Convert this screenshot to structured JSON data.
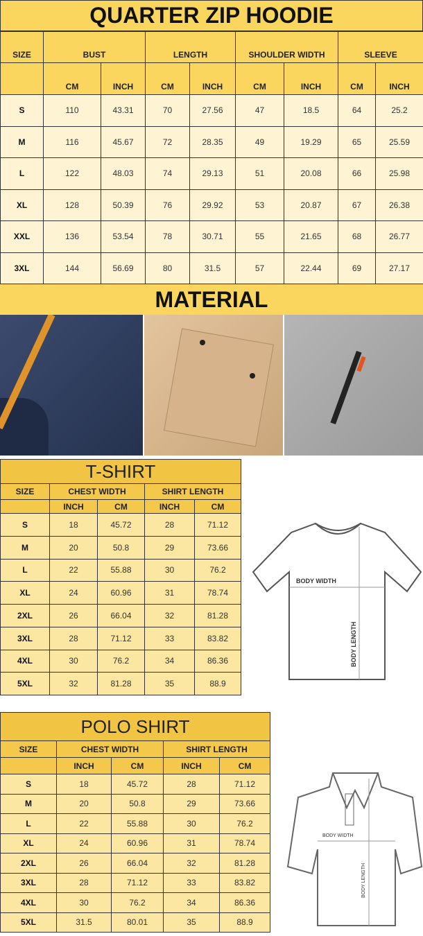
{
  "hoodie": {
    "title": "QUARTER ZIP HOODIE",
    "groups": [
      "SIZE",
      "BUST",
      "LENGTH",
      "SHOULDER WIDTH",
      "SLEEVE"
    ],
    "units": [
      "CM",
      "INCH",
      "CM",
      "INCH",
      "CM",
      "INCH",
      "CM",
      "INCH"
    ],
    "rows": [
      [
        "S",
        "110",
        "43.31",
        "70",
        "27.56",
        "47",
        "18.5",
        "64",
        "25.2"
      ],
      [
        "M",
        "116",
        "45.67",
        "72",
        "28.35",
        "49",
        "19.29",
        "65",
        "25.59"
      ],
      [
        "L",
        "122",
        "48.03",
        "74",
        "29.13",
        "51",
        "20.08",
        "66",
        "25.98"
      ],
      [
        "XL",
        "128",
        "50.39",
        "76",
        "29.92",
        "53",
        "20.87",
        "67",
        "26.38"
      ],
      [
        "XXL",
        "136",
        "53.54",
        "78",
        "30.71",
        "55",
        "21.65",
        "68",
        "26.77"
      ],
      [
        "3XL",
        "144",
        "56.69",
        "80",
        "31.5",
        "57",
        "22.44",
        "69",
        "27.17"
      ]
    ]
  },
  "material": {
    "title": "MATERIAL",
    "photos": [
      "navy-fabric-with-orange-strap",
      "beige-fabric-with-flap-pocket",
      "grey-fabric-with-zipper-pocket"
    ]
  },
  "tshirt": {
    "title": "T-SHIRT",
    "groups": [
      "SIZE",
      "CHEST WIDTH",
      "SHIRT LENGTH"
    ],
    "units": [
      "INCH",
      "CM",
      "INCH",
      "CM"
    ],
    "rows": [
      [
        "S",
        "18",
        "45.72",
        "28",
        "71.12"
      ],
      [
        "M",
        "20",
        "50.8",
        "29",
        "73.66"
      ],
      [
        "L",
        "22",
        "55.88",
        "30",
        "76.2"
      ],
      [
        "XL",
        "24",
        "60.96",
        "31",
        "78.74"
      ],
      [
        "2XL",
        "26",
        "66.04",
        "32",
        "81.28"
      ],
      [
        "3XL",
        "28",
        "71.12",
        "33",
        "83.82"
      ],
      [
        "4XL",
        "30",
        "76.2",
        "34",
        "86.36"
      ],
      [
        "5XL",
        "32",
        "81.28",
        "35",
        "88.9"
      ]
    ],
    "diagram": {
      "width_label": "BODY WIDTH",
      "length_label": "BODY LENGTH"
    }
  },
  "polo": {
    "title": "POLO SHIRT",
    "groups": [
      "SIZE",
      "CHEST WIDTH",
      "SHIRT LENGTH"
    ],
    "units": [
      "INCH",
      "CM",
      "INCH",
      "CM"
    ],
    "rows": [
      [
        "S",
        "18",
        "45.72",
        "28",
        "71.12"
      ],
      [
        "M",
        "20",
        "50.8",
        "29",
        "73.66"
      ],
      [
        "L",
        "22",
        "55.88",
        "30",
        "76.2"
      ],
      [
        "XL",
        "24",
        "60.96",
        "31",
        "78.74"
      ],
      [
        "2XL",
        "26",
        "66.04",
        "32",
        "81.28"
      ],
      [
        "3XL",
        "28",
        "71.12",
        "33",
        "83.82"
      ],
      [
        "4XL",
        "30",
        "76.2",
        "34",
        "86.36"
      ],
      [
        "5XL",
        "31.5",
        "80.01",
        "35",
        "88.9"
      ]
    ],
    "diagram": {
      "width_label": "BODY WIDTH",
      "length_label": "BODY LENGTH"
    }
  },
  "colors": {
    "header_yellow": "#fad65e",
    "cell_cream": "#fef3d3",
    "cell_yellow": "#fbe6a2"
  }
}
